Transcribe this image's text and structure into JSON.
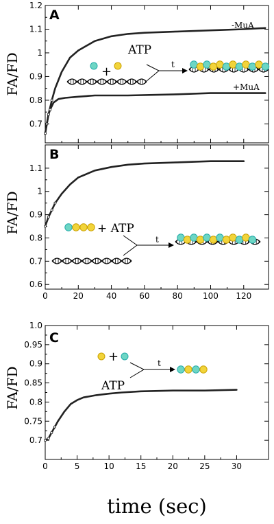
{
  "figure": {
    "x_axis_label": "time (sec)",
    "y_axis_label": "FA/FD"
  },
  "colors": {
    "cyan_subunit": "#6dd6c4",
    "yellow_subunit": "#f2d43a",
    "curve": "#222222"
  },
  "chart_data": [
    {
      "panel": "A",
      "type": "line",
      "xlim": [
        0,
        135
      ],
      "ylim": [
        0.62,
        1.2
      ],
      "x_ticks": [
        0,
        20,
        40,
        60,
        80,
        100,
        120
      ],
      "y_ticks": [
        0.7,
        0.8,
        0.9,
        1,
        1.1,
        1.2
      ],
      "y_tick_labels": [
        "0.7",
        "0.8",
        "0.9",
        "1",
        "1.1",
        "1.2"
      ],
      "show_x_tick_labels": false,
      "series": [
        {
          "name": "-MuA",
          "x": [
            0,
            1,
            2,
            4,
            6,
            10,
            15,
            20,
            30,
            40,
            50,
            60,
            80,
            100,
            120,
            133
          ],
          "y": [
            0.66,
            0.7,
            0.74,
            0.8,
            0.85,
            0.92,
            0.98,
            1.01,
            1.05,
            1.07,
            1.08,
            1.085,
            1.09,
            1.095,
            1.1,
            1.105
          ]
        },
        {
          "name": "+MuA",
          "x": [
            0,
            1,
            2,
            3,
            5,
            8,
            12,
            20,
            30,
            50,
            80,
            100,
            120,
            133
          ],
          "y": [
            0.66,
            0.7,
            0.74,
            0.76,
            0.79,
            0.805,
            0.81,
            0.815,
            0.82,
            0.82,
            0.825,
            0.83,
            0.83,
            0.83
          ]
        }
      ],
      "annotations": [
        {
          "text": "-MuA",
          "x": 122,
          "y": 1.11
        },
        {
          "text": "+MuA",
          "x": 122,
          "y": 0.825
        }
      ],
      "schematic_text": {
        "atp": "ATP",
        "plus": "+",
        "t": "t"
      }
    },
    {
      "panel": "B",
      "type": "line",
      "xlim": [
        0,
        135
      ],
      "ylim": [
        0.58,
        1.2
      ],
      "x_ticks": [
        0,
        20,
        40,
        60,
        80,
        100,
        120
      ],
      "x_tick_labels": [
        "0",
        "20",
        "40",
        "60",
        "80",
        "100",
        "120"
      ],
      "y_ticks": [
        0.6,
        0.7,
        0.8,
        0.9,
        1,
        1.1
      ],
      "y_tick_labels": [
        "0.6",
        "0.7",
        "0.8",
        "0.9",
        "1",
        "1.1"
      ],
      "show_x_tick_labels": true,
      "series": [
        {
          "x": [
            0,
            2,
            4,
            6,
            10,
            15,
            20,
            30,
            40,
            50,
            60,
            80,
            100,
            120
          ],
          "y": [
            0.85,
            0.89,
            0.92,
            0.95,
            0.99,
            1.03,
            1.06,
            1.09,
            1.105,
            1.115,
            1.12,
            1.125,
            1.13,
            1.13
          ]
        }
      ],
      "schematic_text": {
        "plus_atp": "+ ATP",
        "t": "t"
      }
    },
    {
      "panel": "C",
      "type": "line",
      "xlim": [
        0,
        35
      ],
      "ylim": [
        0.65,
        1.0
      ],
      "x_ticks": [
        0,
        5,
        10,
        15,
        20,
        25,
        30
      ],
      "x_tick_labels": [
        "0",
        "5",
        "10",
        "15",
        "20",
        "25",
        "30"
      ],
      "y_ticks": [
        0.7,
        0.75,
        0.8,
        0.85,
        0.9,
        0.95,
        1.0
      ],
      "y_tick_labels": [
        "0.7",
        "0.75",
        "0.8",
        "0.85",
        "0.9",
        "0.95",
        "1.0"
      ],
      "show_x_tick_labels": true,
      "series": [
        {
          "x": [
            0,
            0.5,
            1,
            1.5,
            2,
            3,
            4,
            5,
            6,
            8,
            10,
            12,
            15,
            20,
            25,
            30
          ],
          "y": [
            0.7,
            0.705,
            0.72,
            0.735,
            0.75,
            0.775,
            0.795,
            0.805,
            0.812,
            0.818,
            0.822,
            0.825,
            0.828,
            0.83,
            0.83,
            0.832
          ]
        }
      ],
      "schematic_text": {
        "plus": "+",
        "atp": "ATP",
        "t": "t"
      }
    }
  ]
}
